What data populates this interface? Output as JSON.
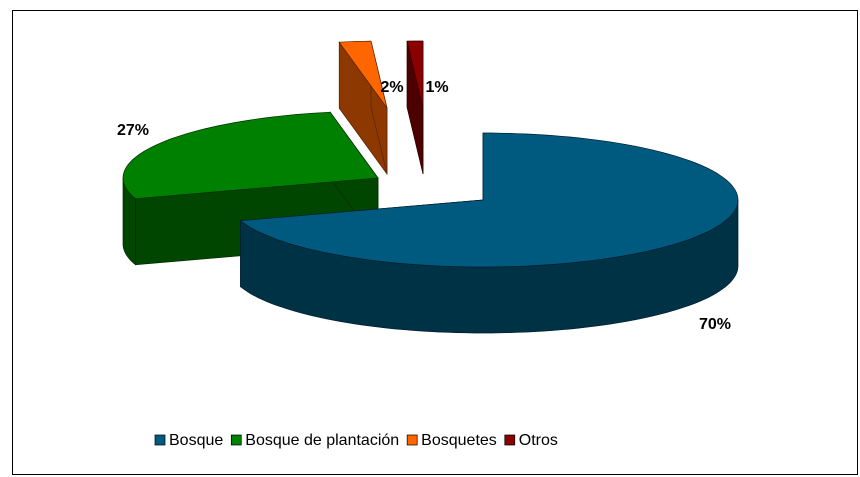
{
  "chart_data": {
    "type": "pie3d",
    "categories": [
      "Bosque",
      "Bosque de plantación",
      "Bosquetes",
      "Otros"
    ],
    "values": [
      70,
      27,
      2,
      1
    ],
    "value_labels": [
      "70%",
      "27%",
      "2%",
      "1%"
    ],
    "colors": [
      "#005a80",
      "#008000",
      "#ff6600",
      "#8b0000"
    ],
    "legend": "bottom"
  }
}
